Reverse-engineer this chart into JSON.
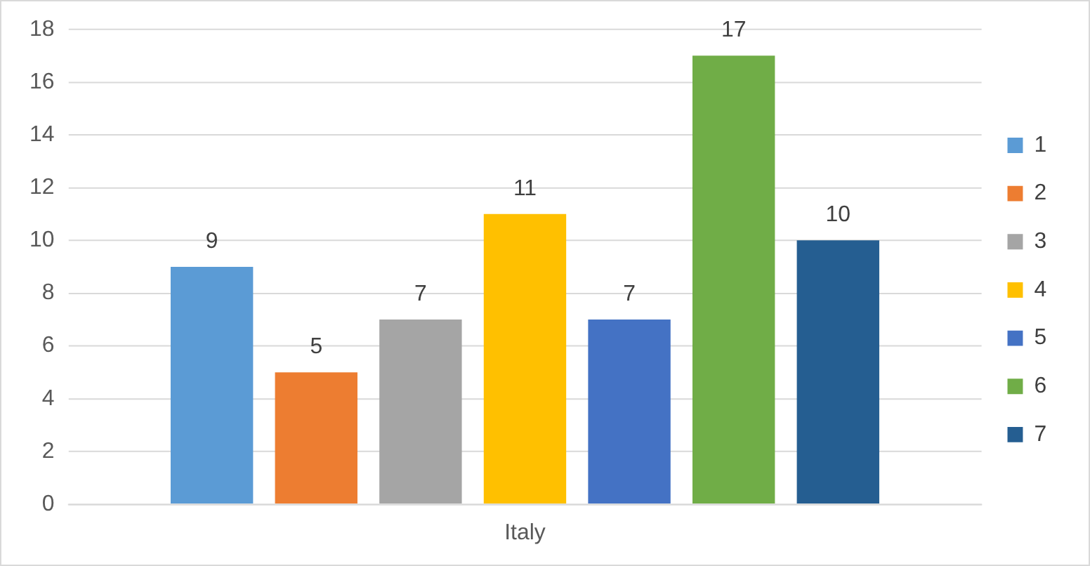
{
  "chart_data": {
    "type": "bar",
    "categories": [
      "Italy"
    ],
    "series": [
      {
        "name": "1",
        "color": "#5b9bd5",
        "values": [
          9
        ]
      },
      {
        "name": "2",
        "color": "#ed7d31",
        "values": [
          5
        ]
      },
      {
        "name": "3",
        "color": "#a5a5a5",
        "values": [
          7
        ]
      },
      {
        "name": "4",
        "color": "#ffc000",
        "values": [
          11
        ]
      },
      {
        "name": "5",
        "color": "#4472c4",
        "values": [
          7
        ]
      },
      {
        "name": "6",
        "color": "#70ad47",
        "values": [
          17
        ]
      },
      {
        "name": "7",
        "color": "#255e91",
        "values": [
          10
        ]
      }
    ],
    "ylim": [
      0,
      18
    ],
    "yticks": [
      0,
      2,
      4,
      6,
      8,
      10,
      12,
      14,
      16,
      18
    ],
    "grid": "y",
    "legend": "right",
    "data_labels": true
  }
}
